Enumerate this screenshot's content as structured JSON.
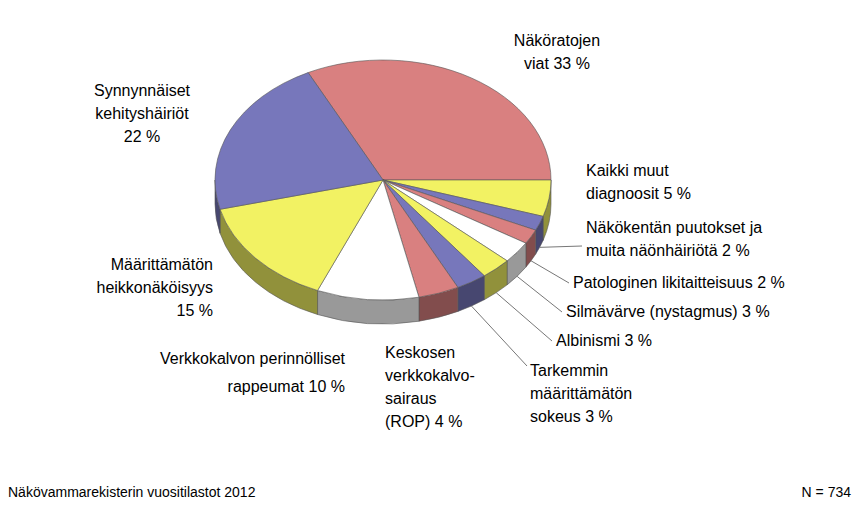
{
  "chart_data": {
    "type": "pie",
    "categories": [
      "Näköratojen viat",
      "Kaikki muut diagnoosit",
      "Näkökentän puutokset ja muita näönhäiriötä",
      "Patologinen likitaitteisuus",
      "Silmävärve (nystagmus)",
      "Albinismi",
      "Tarkemmin määrittämätön sokeus",
      "Keskosen verkkokalvo-sairaus (ROP)",
      "Verkkokalvon perinnölliset rappeumat",
      "Määrittämätön heikkonäköisyys",
      "Synnynnäiset kehityshäiriöt"
    ],
    "values": [
      33,
      5,
      2,
      2,
      3,
      3,
      3,
      4,
      10,
      15,
      22
    ],
    "value_labels": [
      "33 %",
      "5 %",
      "2 %",
      "2 %",
      "3 %",
      "3 %",
      "3 %",
      "4 %",
      "10 %",
      "15 %",
      "22 %"
    ],
    "colors": [
      "#d98080",
      "#f2f263",
      "#7777bb",
      "#d98080",
      "#ffffff",
      "#f2f263",
      "#7777bb",
      "#d98080",
      "#ffffff",
      "#f2f263",
      "#7777bb"
    ],
    "data_labels": true,
    "annotations": [
      "Näkövammarekisterin vuositilastot 2012",
      "N = 734"
    ]
  }
}
